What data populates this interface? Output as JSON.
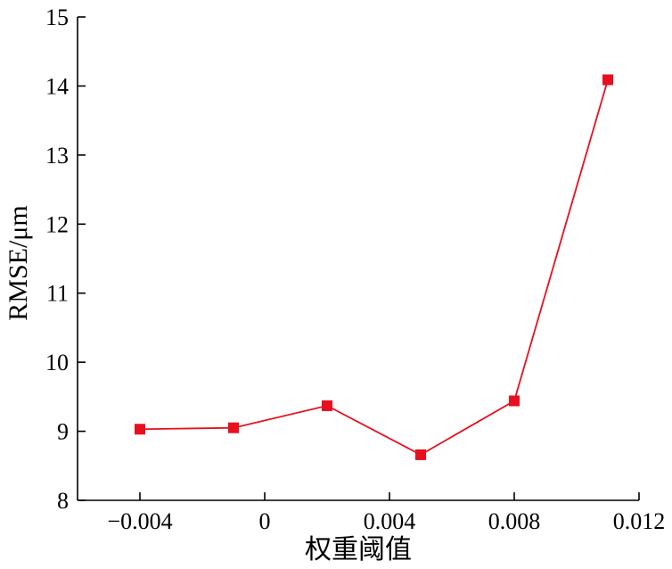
{
  "chart_data": {
    "type": "line",
    "title": "",
    "xlabel": "权重阈值",
    "ylabel": "RMSE/μm",
    "xlim": [
      -0.006,
      0.012
    ],
    "ylim": [
      8,
      15
    ],
    "xticks": [
      -0.004,
      0,
      0.004,
      0.008,
      0.012
    ],
    "xtick_labels": [
      "−0.004",
      "0",
      "0.004",
      "0.008",
      "0.012"
    ],
    "yticks": [
      8,
      9,
      10,
      11,
      12,
      13,
      14,
      15
    ],
    "ytick_labels": [
      "8",
      "9",
      "10",
      "11",
      "12",
      "13",
      "14",
      "15"
    ],
    "grid": false,
    "legend": "none",
    "series": [
      {
        "color": "#e8101e",
        "marker": "square",
        "x": [
          -0.004,
          -0.001,
          0.002,
          0.005,
          0.008,
          0.011
        ],
        "y": [
          9.03,
          9.05,
          9.37,
          8.66,
          9.44,
          14.09
        ]
      }
    ]
  }
}
